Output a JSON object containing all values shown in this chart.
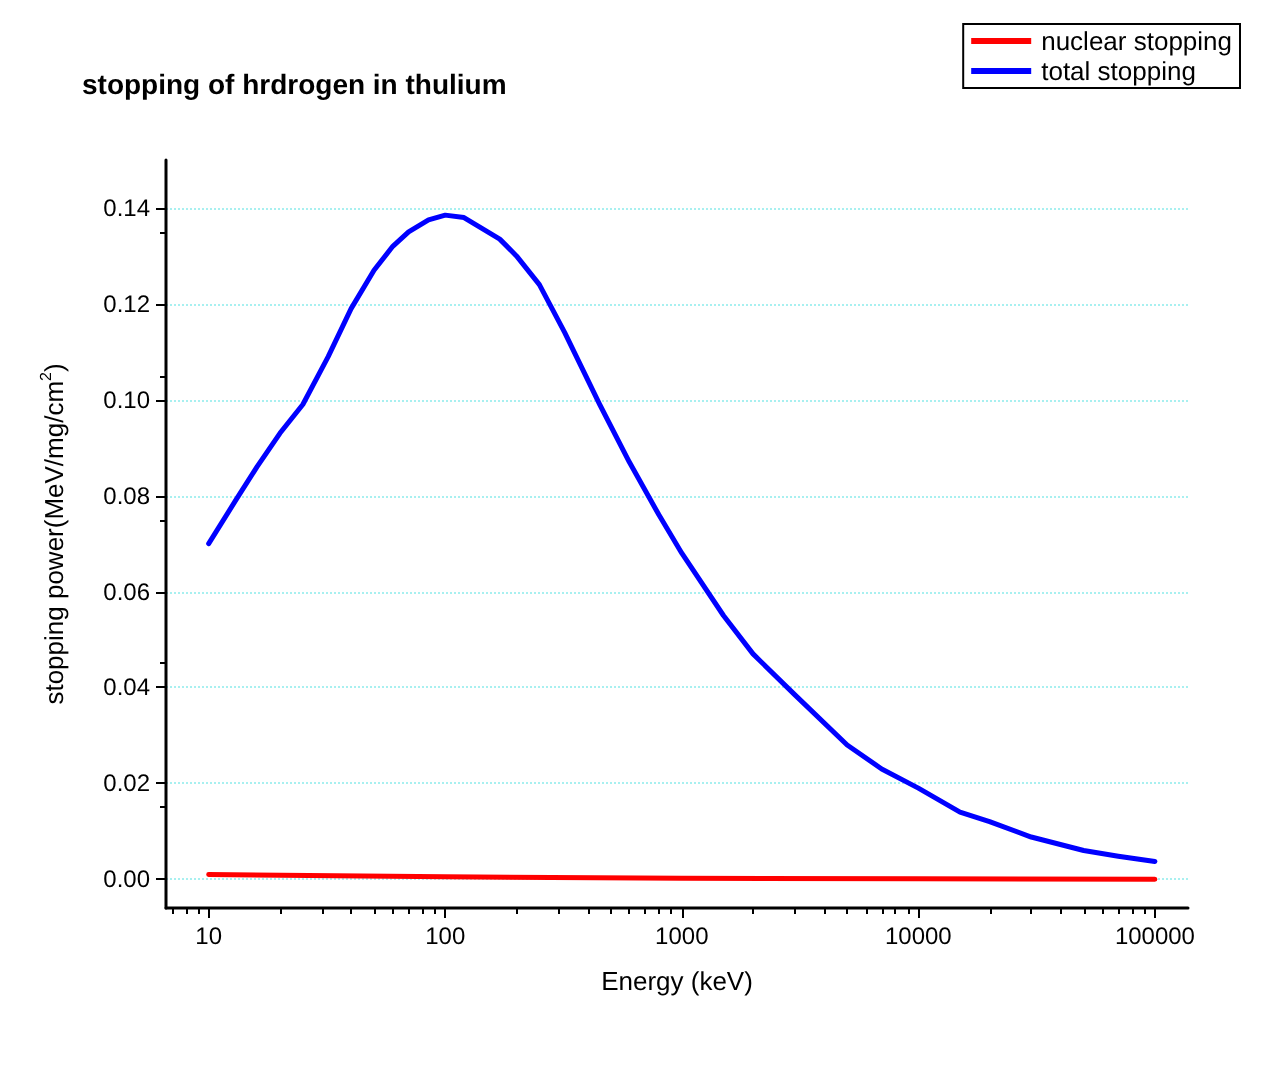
{
  "chart_data": {
    "type": "line",
    "title": "stopping of hrdrogen in thulium",
    "xlabel": "Energy (keV)",
    "ylabel": "stopping power(MeV/mg/cm$^{2}$)",
    "log": "x",
    "xlim": [
      6.6,
      138000
    ],
    "xticks": [
      10,
      100,
      1000,
      10000,
      100000
    ],
    "ylim": [
      -0.006,
      0.15
    ],
    "yticks": [
      {
        "value": 0,
        "label": "0.00"
      },
      0.02,
      0.04,
      0.06,
      0.08,
      {
        "value": 0.1,
        "label": "0.10"
      },
      0.12,
      0.14
    ],
    "grid": "y",
    "legend": "top right",
    "line_style": "solid",
    "marker": "none",
    "series": [
      {
        "name": "nuclear stopping",
        "color": "#ff0000",
        "x": [
          10,
          100,
          1000,
          10000,
          100000
        ],
        "values": [
          0.001,
          0.0005,
          0.0002,
          0.0001,
          0.0
        ]
      },
      {
        "name": "total stopping",
        "color": "#0000ff",
        "x": [
          10,
          13,
          16,
          20,
          25,
          32,
          40,
          50,
          60,
          70,
          85,
          100,
          120,
          140,
          170,
          200,
          250,
          320,
          450,
          600,
          800,
          1000,
          1500,
          2000,
          3000,
          5000,
          7000,
          10000,
          15000,
          20000,
          30000,
          50000,
          70000,
          100000
        ],
        "values": [
          0.07,
          0.079,
          0.086,
          0.093,
          0.099,
          0.109,
          0.119,
          0.127,
          0.132,
          0.135,
          0.1375,
          0.1385,
          0.138,
          0.136,
          0.1335,
          0.13,
          0.124,
          0.114,
          0.099,
          0.087,
          0.076,
          0.068,
          0.055,
          0.047,
          0.0385,
          0.028,
          0.023,
          0.019,
          0.014,
          0.012,
          0.0088,
          0.006,
          0.0048,
          0.0037
        ]
      }
    ]
  }
}
